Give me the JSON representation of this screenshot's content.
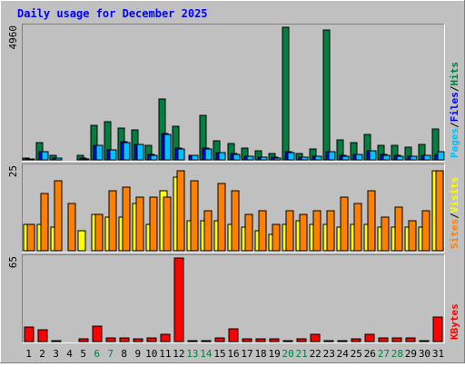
{
  "page": {
    "background": "#c0c0c0",
    "panel_background": "#c0c0c0"
  },
  "chart_data": {
    "type": "bar",
    "title": "Daily usage for December 2025",
    "title_color": "#0000ff",
    "days": [
      "1",
      "2",
      "3",
      "4",
      "5",
      "6",
      "7",
      "8",
      "9",
      "10",
      "11",
      "12",
      "13",
      "14",
      "15",
      "16",
      "17",
      "18",
      "19",
      "20",
      "21",
      "22",
      "23",
      "24",
      "25",
      "26",
      "27",
      "28",
      "29",
      "30",
      "31"
    ],
    "weekend_days": [
      "6",
      "7",
      "13",
      "14",
      "20",
      "21",
      "27",
      "28"
    ],
    "weekday_color": "#000000",
    "weekend_color": "#008040",
    "panels": [
      {
        "id": "hits-files-pages",
        "ylim": [
          0,
          4960
        ],
        "max_label": "4960",
        "right_labels": [
          {
            "text": "Hits",
            "color": "#008040"
          },
          {
            "text": "/",
            "color": "#000000"
          },
          {
            "text": "Files",
            "color": "#0000ff"
          },
          {
            "text": "/",
            "color": "#000000"
          },
          {
            "text": "Pages",
            "color": "#00c0ff"
          }
        ],
        "series": [
          {
            "name": "Hits",
            "color": "#008040",
            "values": [
              80,
              640,
              170,
              0,
              180,
              1300,
              1430,
              1200,
              1120,
              550,
              2270,
              1260,
              0,
              1670,
              700,
              620,
              450,
              350,
              230,
              4960,
              240,
              410,
              4860,
              760,
              630,
              960,
              560,
              560,
              460,
              590,
              1150
            ]
          },
          {
            "name": "Files",
            "color": "#0000ff",
            "values": [
              40,
              300,
              70,
              0,
              60,
              560,
              370,
              680,
              580,
              190,
              970,
              430,
              180,
              430,
              280,
              230,
              140,
              110,
              90,
              290,
              100,
              140,
              300,
              160,
              200,
              350,
              190,
              160,
              130,
              170,
              200
            ]
          },
          {
            "name": "Pages",
            "color": "#00c0ff",
            "values": [
              30,
              300,
              60,
              0,
              50,
              550,
              360,
              650,
              570,
              180,
              950,
              420,
              160,
              420,
              260,
              220,
              130,
              100,
              80,
              280,
              90,
              130,
              290,
              150,
              190,
              340,
              180,
              150,
              120,
              160,
              290
            ]
          }
        ]
      },
      {
        "id": "visits-sites",
        "ylim": [
          0,
          25
        ],
        "max_label": "25",
        "right_labels": [
          {
            "text": "Visits",
            "color": "#ffff00"
          },
          {
            "text": "/",
            "color": "#000000"
          },
          {
            "text": "Sites",
            "color": "#ff8000"
          }
        ],
        "series": [
          {
            "name": "Visits",
            "color": "#ffff00",
            "values": [
              8,
              8,
              7,
              0,
              6,
              11,
              10,
              10,
              14,
              8,
              18,
              22,
              9,
              9,
              9,
              8,
              7,
              6,
              5,
              8,
              9,
              8,
              8,
              7,
              8,
              8,
              7,
              7,
              7,
              7,
              24
            ]
          },
          {
            "name": "Sites",
            "color": "#ff8000",
            "values": [
              8,
              17,
              21,
              14,
              0,
              11,
              18,
              19,
              16,
              16,
              16,
              24,
              21,
              12,
              20,
              18,
              11,
              12,
              8,
              12,
              11,
              12,
              12,
              16,
              14,
              18,
              10,
              13,
              9,
              12,
              24
            ]
          }
        ]
      },
      {
        "id": "kbytes",
        "ylim": [
          0,
          65
        ],
        "max_label": "65",
        "right_labels": [
          {
            "text": "KBytes",
            "color": "#ff0000"
          }
        ],
        "series": [
          {
            "name": "KBytes",
            "color": "#ff0000",
            "values": [
              11,
              9,
              1,
              0,
              2,
              12,
              3,
              3,
              2,
              3,
              6,
              65,
              1,
              1,
              3,
              10,
              2,
              2,
              2,
              1,
              2,
              6,
              1,
              1,
              2,
              6,
              3,
              3,
              3,
              1,
              19
            ]
          }
        ]
      }
    ]
  }
}
